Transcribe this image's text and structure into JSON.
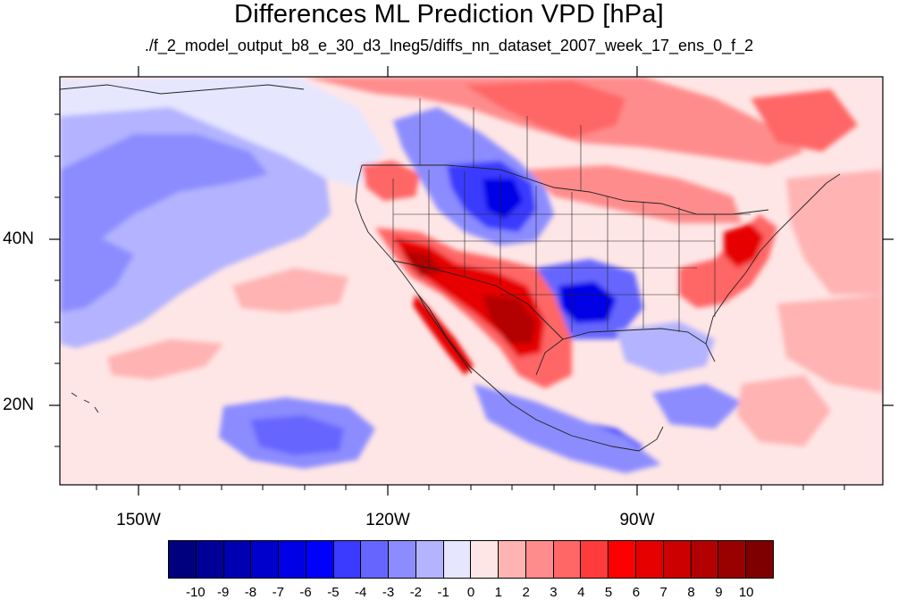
{
  "figure": {
    "title": "Differences ML Prediction VPD [hPa]",
    "subtitle": "./f_2_model_output_b8_e_30_d3_lneg5/diffs_nn_dataset_2007_week_17_ens_0_f_2"
  },
  "map": {
    "projection": "cylindrical equidistant",
    "lon_range": [
      -160,
      -63
    ],
    "lat_range": [
      10,
      59
    ],
    "lat_labels": [
      "40N",
      "20N"
    ],
    "lon_labels": [
      "150W",
      "120W",
      "90W"
    ],
    "boundaries": [
      "coastlines",
      "country borders",
      "US state borders"
    ]
  },
  "colorbar": {
    "levels": [
      "-10",
      "-9",
      "-8",
      "-7",
      "-6",
      "-5",
      "-4",
      "-3",
      "-2",
      "-1",
      "0",
      "1",
      "2",
      "3",
      "4",
      "5",
      "6",
      "7",
      "8",
      "9",
      "10"
    ],
    "colors": [
      "#00007f",
      "#000099",
      "#0000b3",
      "#0000cc",
      "#0000e6",
      "#0000ff",
      "#3b3bff",
      "#6666ff",
      "#8c8cff",
      "#b3b3ff",
      "#e6e6ff",
      "#ffe6e6",
      "#ffb3b3",
      "#ff8c8c",
      "#ff6666",
      "#ff3b3b",
      "#ff0000",
      "#e60000",
      "#cc0000",
      "#b30000",
      "#990000",
      "#7f0000"
    ]
  }
}
